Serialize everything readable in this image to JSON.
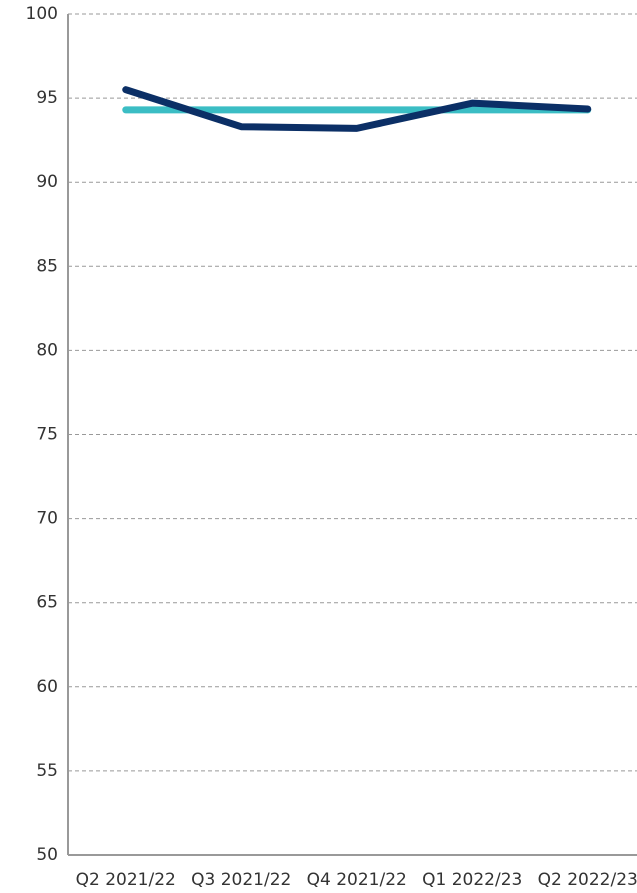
{
  "chart_data": {
    "type": "line",
    "categories": [
      "Q2 2021/22",
      "Q3 2021/22",
      "Q4 2021/22",
      "Q1 2022/23",
      "Q2 2022/23"
    ],
    "series": [
      {
        "color": "#3bbdc4",
        "values": [
          94.3,
          94.3,
          94.3,
          94.3,
          94.3
        ]
      },
      {
        "color": "#0b2f66",
        "values": [
          95.5,
          93.3,
          93.2,
          94.7,
          94.35
        ]
      }
    ],
    "ylim": [
      50,
      100
    ],
    "yticks": [
      50,
      55,
      60,
      65,
      70,
      75,
      80,
      85,
      90,
      95,
      100
    ],
    "grid": true
  }
}
